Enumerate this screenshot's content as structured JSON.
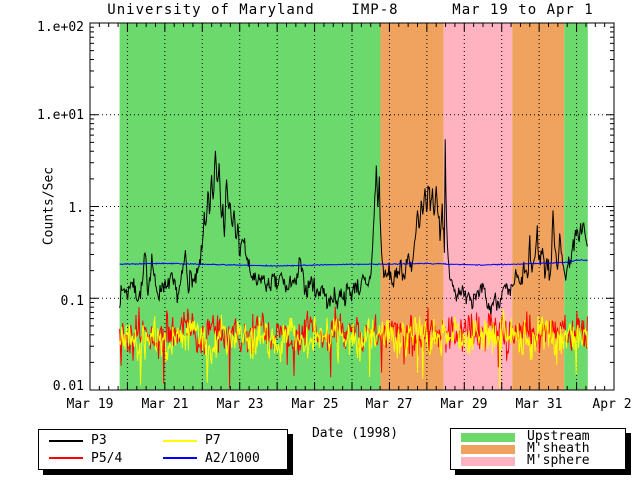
{
  "title": {
    "part1": "University of Maryland",
    "part2": "IMP-8",
    "part3": "Mar 19 to Apr 1"
  },
  "axes": {
    "ylabel": "Counts/Sec",
    "xlabel": "Date (1998)",
    "y_tick_labels": [
      "1.e+02",
      "1.e+01",
      "1.",
      "0.1",
      "0.01"
    ],
    "x_tick_labels": [
      "Mar 19",
      "Mar 21",
      "Mar 23",
      "Mar 25",
      "Mar 27",
      "Mar 29",
      "Mar 31",
      "Apr 2"
    ]
  },
  "legend_lines": {
    "items": [
      {
        "label": "P3",
        "color": "#000000"
      },
      {
        "label": "P5/4",
        "color": "#ff0000"
      },
      {
        "label": "P7",
        "color": "#ffff00"
      },
      {
        "label": "A2/1000",
        "color": "#0000ff"
      }
    ]
  },
  "legend_regions": {
    "items": [
      {
        "label": "Upstream",
        "color": "#6cd96c"
      },
      {
        "label": "M'sheath",
        "color": "#f0a35e"
      },
      {
        "label": "M'sphere",
        "color": "#ffb3c1"
      }
    ]
  },
  "chart_data": {
    "type": "line",
    "title": "University of Maryland  IMP-8  Mar 19 to Apr 1",
    "xlabel": "Date (1998)",
    "ylabel": "Counts/Sec",
    "x_axis": {
      "units_days_after": "Mar 19 1998 00:00",
      "range": [
        0,
        14
      ],
      "day_tick_every": 1,
      "label_every_days": 2,
      "minor_tick_days": 0.25,
      "grid": "dotted vertical line each day"
    },
    "y_axis": {
      "scale": "log",
      "range": [
        0.01,
        100
      ],
      "grid": "dotted horizontal line each decade"
    },
    "regions": [
      {
        "label": "Upstream",
        "t0": 0.79,
        "t1": 7.76
      },
      {
        "label": "M'sheath",
        "t0": 7.76,
        "t1": 9.45
      },
      {
        "label": "M'sphere",
        "t0": 9.45,
        "t1": 11.28
      },
      {
        "label": "M'sheath",
        "t0": 11.28,
        "t1": 12.67
      },
      {
        "label": "Upstream",
        "t0": 12.67,
        "t1": 13.3
      }
    ],
    "sample_step_days": 0.02,
    "series": [
      {
        "name": "P3",
        "color": "#000000",
        "seed": 7,
        "noise_log_amp": 0.055,
        "keyframes": [
          [
            0.79,
            0.1
          ],
          [
            0.9,
            0.13
          ],
          [
            1.0,
            0.11
          ],
          [
            1.1,
            0.16
          ],
          [
            1.2,
            0.12
          ],
          [
            1.3,
            0.1
          ],
          [
            1.4,
            0.14
          ],
          [
            1.47,
            0.3
          ],
          [
            1.55,
            0.12
          ],
          [
            1.65,
            0.28
          ],
          [
            1.75,
            0.13
          ],
          [
            1.85,
            0.11
          ],
          [
            1.95,
            0.15
          ],
          [
            2.05,
            0.12
          ],
          [
            2.15,
            0.17
          ],
          [
            2.25,
            0.13
          ],
          [
            2.35,
            0.11
          ],
          [
            2.45,
            0.16
          ],
          [
            2.55,
            0.31
          ],
          [
            2.62,
            0.14
          ],
          [
            2.7,
            0.18
          ],
          [
            2.8,
            0.14
          ],
          [
            2.9,
            0.2
          ],
          [
            3.0,
            0.35
          ],
          [
            3.05,
            0.9
          ],
          [
            3.1,
            0.5
          ],
          [
            3.15,
            1.4
          ],
          [
            3.2,
            0.7
          ],
          [
            3.25,
            2.2
          ],
          [
            3.3,
            1.0
          ],
          [
            3.35,
            4.5
          ],
          [
            3.4,
            1.6
          ],
          [
            3.45,
            3.2
          ],
          [
            3.5,
            0.8
          ],
          [
            3.55,
            1.2
          ],
          [
            3.6,
            0.45
          ],
          [
            3.65,
            2.4
          ],
          [
            3.7,
            0.9
          ],
          [
            3.75,
            1.1
          ],
          [
            3.8,
            0.5
          ],
          [
            3.85,
            0.9
          ],
          [
            3.9,
            0.4
          ],
          [
            3.95,
            0.65
          ],
          [
            4.0,
            0.3
          ],
          [
            4.1,
            0.45
          ],
          [
            4.2,
            0.25
          ],
          [
            4.3,
            0.18
          ],
          [
            4.45,
            0.14
          ],
          [
            4.6,
            0.17
          ],
          [
            4.75,
            0.13
          ],
          [
            4.9,
            0.16
          ],
          [
            5.0,
            0.13
          ],
          [
            5.1,
            0.18
          ],
          [
            5.2,
            0.14
          ],
          [
            5.3,
            0.12
          ],
          [
            5.4,
            0.17
          ],
          [
            5.5,
            0.13
          ],
          [
            5.61,
            0.26
          ],
          [
            5.7,
            0.15
          ],
          [
            5.8,
            0.12
          ],
          [
            5.9,
            0.16
          ],
          [
            6.0,
            0.13
          ],
          [
            6.1,
            0.11
          ],
          [
            6.2,
            0.14
          ],
          [
            6.3,
            0.1
          ],
          [
            6.4,
            0.085
          ],
          [
            6.5,
            0.11
          ],
          [
            6.6,
            0.09
          ],
          [
            6.7,
            0.12
          ],
          [
            6.8,
            0.1
          ],
          [
            6.9,
            0.13
          ],
          [
            7.0,
            0.11
          ],
          [
            7.1,
            0.15
          ],
          [
            7.2,
            0.12
          ],
          [
            7.3,
            0.16
          ],
          [
            7.4,
            0.13
          ],
          [
            7.5,
            0.18
          ],
          [
            7.55,
            0.35
          ],
          [
            7.61,
            1.2
          ],
          [
            7.65,
            2.6
          ],
          [
            7.69,
            1.0
          ],
          [
            7.73,
            1.9
          ],
          [
            7.76,
            0.6
          ],
          [
            7.8,
            0.25
          ],
          [
            7.9,
            0.16
          ],
          [
            8.0,
            0.2
          ],
          [
            8.1,
            0.14
          ],
          [
            8.2,
            0.18
          ],
          [
            8.3,
            0.25
          ],
          [
            8.4,
            0.16
          ],
          [
            8.5,
            0.3
          ],
          [
            8.6,
            0.22
          ],
          [
            8.7,
            0.45
          ],
          [
            8.75,
            0.9
          ],
          [
            8.8,
            0.5
          ],
          [
            8.85,
            1.1
          ],
          [
            8.9,
            0.7
          ],
          [
            8.95,
            1.5
          ],
          [
            9.0,
            0.9
          ],
          [
            9.05,
            1.7
          ],
          [
            9.1,
            1.0
          ],
          [
            9.15,
            1.4
          ],
          [
            9.2,
            0.8
          ],
          [
            9.25,
            1.6
          ],
          [
            9.3,
            0.9
          ],
          [
            9.35,
            0.5
          ],
          [
            9.41,
            1.0
          ],
          [
            9.47,
            0.4
          ],
          [
            9.49,
            4.3
          ],
          [
            9.53,
            0.5
          ],
          [
            9.6,
            0.18
          ],
          [
            9.7,
            0.13
          ],
          [
            9.8,
            0.11
          ],
          [
            9.9,
            0.13
          ],
          [
            10.0,
            0.1
          ],
          [
            10.1,
            0.12
          ],
          [
            10.2,
            0.095
          ],
          [
            10.3,
            0.12
          ],
          [
            10.4,
            0.1
          ],
          [
            10.5,
            0.13
          ],
          [
            10.6,
            0.085
          ],
          [
            10.7,
            0.075
          ],
          [
            10.8,
            0.1
          ],
          [
            10.9,
            0.09
          ],
          [
            11.0,
            0.11
          ],
          [
            11.1,
            0.13
          ],
          [
            11.2,
            0.1
          ],
          [
            11.3,
            0.14
          ],
          [
            11.4,
            0.18
          ],
          [
            11.5,
            0.13
          ],
          [
            11.6,
            0.22
          ],
          [
            11.7,
            0.16
          ],
          [
            11.75,
            0.38
          ],
          [
            11.8,
            0.2
          ],
          [
            11.9,
            0.3
          ],
          [
            11.95,
            0.55
          ],
          [
            12.0,
            0.25
          ],
          [
            12.1,
            0.35
          ],
          [
            12.15,
            0.18
          ],
          [
            12.2,
            0.28
          ],
          [
            12.3,
            0.16
          ],
          [
            12.37,
            0.75
          ],
          [
            12.45,
            0.3
          ],
          [
            12.5,
            0.2
          ],
          [
            12.55,
            0.6
          ],
          [
            12.6,
            0.25
          ],
          [
            12.7,
            0.18
          ],
          [
            12.8,
            0.25
          ],
          [
            12.9,
            0.35
          ],
          [
            13.0,
            0.5
          ],
          [
            13.05,
            0.45
          ],
          [
            13.1,
            0.6
          ],
          [
            13.15,
            0.55
          ],
          [
            13.2,
            0.65
          ],
          [
            13.25,
            0.4
          ],
          [
            13.29,
            0.35
          ]
        ]
      },
      {
        "name": "P5/4",
        "color": "#ff0000",
        "seed": 13,
        "noise_log_amp": 0.1,
        "downspike_prob": 0.03,
        "downspike_log": -0.33,
        "t_start": 0.79,
        "t_step": 0.25,
        "values": [
          0.045,
          0.034,
          0.052,
          0.04,
          0.03,
          0.048,
          0.037,
          0.055,
          0.042,
          0.033,
          0.05,
          0.038,
          0.046,
          0.031,
          0.044,
          0.053,
          0.036,
          0.047,
          0.04,
          0.032,
          0.05,
          0.043,
          0.035,
          0.052,
          0.041,
          0.048,
          0.034,
          0.045,
          0.038,
          0.05,
          0.042,
          0.046,
          0.033,
          0.051,
          0.039,
          0.047,
          0.036,
          0.044,
          0.05,
          0.037,
          0.053,
          0.041,
          0.034,
          0.049,
          0.043,
          0.038,
          0.052,
          0.045,
          0.04,
          0.047,
          0.042
        ]
      },
      {
        "name": "P7",
        "color": "#ffff00",
        "seed": 21,
        "noise_log_amp": 0.11,
        "downspike_prob": 0.035,
        "downspike_log": -0.38,
        "t_start": 0.79,
        "t_step": 0.25,
        "values": [
          0.035,
          0.042,
          0.028,
          0.038,
          0.045,
          0.03,
          0.04,
          0.033,
          0.046,
          0.036,
          0.027,
          0.043,
          0.037,
          0.048,
          0.032,
          0.04,
          0.035,
          0.029,
          0.044,
          0.038,
          0.031,
          0.042,
          0.036,
          0.047,
          0.033,
          0.04,
          0.03,
          0.045,
          0.037,
          0.043,
          0.034,
          0.039,
          0.046,
          0.031,
          0.041,
          0.035,
          0.044,
          0.029,
          0.038,
          0.042,
          0.033,
          0.047,
          0.036,
          0.04,
          0.032,
          0.045,
          0.039,
          0.034,
          0.043,
          0.037,
          0.041
        ]
      },
      {
        "name": "A2/1000",
        "color": "#0000ff",
        "seed": 5,
        "noise_log_amp": 0.003,
        "keyframes": [
          [
            0.79,
            0.235
          ],
          [
            2,
            0.24
          ],
          [
            3,
            0.235
          ],
          [
            4,
            0.23
          ],
          [
            5,
            0.225
          ],
          [
            6,
            0.23
          ],
          [
            7,
            0.235
          ],
          [
            8,
            0.235
          ],
          [
            9,
            0.24
          ],
          [
            9.6,
            0.235
          ],
          [
            10.5,
            0.23
          ],
          [
            11.3,
            0.235
          ],
          [
            12,
            0.24
          ],
          [
            12.7,
            0.245
          ],
          [
            13,
            0.26
          ],
          [
            13.29,
            0.26
          ]
        ]
      }
    ]
  }
}
